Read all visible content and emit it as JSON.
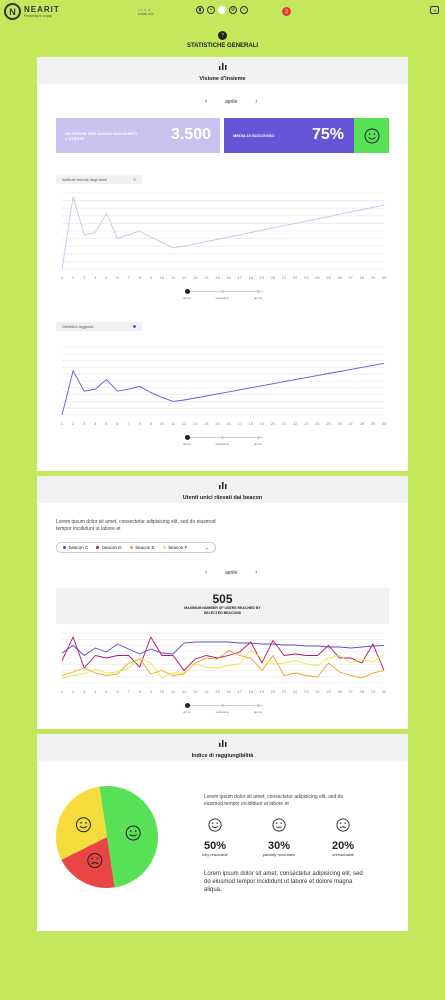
{
  "header": {
    "logo_mark": "N",
    "brand_name": "NEARIT",
    "brand_tagline": "Proximity is a way",
    "mini_line1": "v 1 . 0 . 0",
    "mini_line2": "NOME APP",
    "notifications_count": "3",
    "icons": [
      "chart-icon",
      "plus-icon",
      "share-icon",
      "settings-icon",
      "info-icon"
    ]
  },
  "page": {
    "icon_glyph": "?",
    "title": "STATISTICHE GENERALI"
  },
  "overview": {
    "title": "Visione d'insieme",
    "month": "aprile",
    "kpi_notifications_label": "NOTIFICHE CHE HANNO RAGGIUNTO L'UTENTE",
    "kpi_notifications_value": "3.500",
    "kpi_success_label": "MEDIA DI SUCCESSO",
    "kpi_success_value": "75%",
    "colors": {
      "kpi1": "#c8c3ee",
      "kpi2": "#6655d6",
      "good": "#58e056"
    },
    "range_labels": [
      "ultimo",
      "settimana",
      "giorno"
    ]
  },
  "chart_data": [
    {
      "type": "line",
      "legend": "Notifiche ricevute dagli utenti",
      "x": [
        "1",
        "2",
        "3",
        "4",
        "5",
        "6",
        "7",
        "8",
        "9",
        "10",
        "11",
        "12",
        "13",
        "14",
        "15",
        "16",
        "17",
        "18",
        "19",
        "20",
        "21",
        "22",
        "23",
        "24",
        "25",
        "26",
        "27",
        "28",
        "29",
        "30"
      ],
      "values": [
        0,
        95,
        45,
        48,
        73,
        40,
        45,
        50,
        42,
        35,
        28,
        30,
        33,
        36,
        39,
        42,
        45,
        48,
        51,
        54,
        57,
        60,
        63,
        66,
        69,
        72,
        75,
        78,
        81,
        84
      ],
      "color": "#c8c3ee",
      "ylim": [
        0,
        100
      ]
    },
    {
      "type": "line",
      "legend": "Obbiettivo raggiunto",
      "x": [
        "1",
        "2",
        "3",
        "4",
        "5",
        "6",
        "7",
        "8",
        "9",
        "10",
        "11",
        "12",
        "13",
        "14",
        "15",
        "16",
        "17",
        "18",
        "19",
        "20",
        "21",
        "22",
        "23",
        "24",
        "25",
        "26",
        "27",
        "28",
        "29",
        "30"
      ],
      "values": [
        0,
        65,
        35,
        38,
        52,
        35,
        38,
        42,
        33,
        26,
        20,
        22,
        25,
        28,
        31,
        34,
        37,
        40,
        43,
        46,
        49,
        52,
        55,
        58,
        61,
        64,
        67,
        70,
        73,
        76
      ],
      "color": "#6655d6",
      "ylim": [
        0,
        100
      ]
    },
    {
      "type": "line",
      "x": [
        "1",
        "2",
        "3",
        "4",
        "5",
        "6",
        "7",
        "8",
        "9",
        "10",
        "11",
        "12",
        "13",
        "14",
        "15",
        "16",
        "17",
        "18",
        "19",
        "20",
        "21",
        "22",
        "23",
        "24",
        "25",
        "26",
        "27",
        "28",
        "29",
        "30"
      ],
      "series": [
        {
          "name": "beacon C",
          "color": "#5b4fc9",
          "values": [
            60,
            75,
            55,
            70,
            62,
            78,
            68,
            58,
            68,
            60,
            58,
            80,
            82,
            82,
            82,
            82,
            80,
            80,
            78,
            78,
            76,
            76,
            74,
            74,
            72,
            72,
            70,
            72,
            74,
            75
          ]
        },
        {
          "name": "beacon D",
          "color": "#b4146e",
          "values": [
            45,
            92,
            30,
            55,
            50,
            55,
            55,
            32,
            92,
            55,
            55,
            25,
            48,
            55,
            50,
            55,
            62,
            82,
            40,
            85,
            55,
            58,
            55,
            55,
            75,
            50,
            50,
            40,
            78,
            25
          ]
        },
        {
          "name": "beacon E",
          "color": "#f0a020",
          "values": [
            15,
            22,
            30,
            20,
            15,
            18,
            40,
            48,
            18,
            25,
            15,
            18,
            40,
            50,
            48,
            65,
            55,
            50,
            25,
            55,
            15,
            20,
            15,
            12,
            40,
            22,
            15,
            10,
            20,
            25
          ]
        },
        {
          "name": "beacon F",
          "color": "#e8e838",
          "values": [
            10,
            15,
            18,
            28,
            20,
            22,
            30,
            50,
            40,
            10,
            20,
            20,
            38,
            32,
            30,
            35,
            38,
            65,
            50,
            38,
            40,
            45,
            38,
            35,
            50,
            55,
            40,
            48,
            42,
            58
          ]
        }
      ],
      "ylim": [
        0,
        100
      ]
    },
    {
      "type": "pie",
      "categories": [
        "fully reachable",
        "partially reachable",
        "unreachable"
      ],
      "values": [
        50,
        30,
        20
      ],
      "colors": [
        "#58e056",
        "#f5dc3c",
        "#e84545"
      ]
    }
  ],
  "beacons_section": {
    "title": "Utenti unici rilevati dai beacon",
    "intro": "Lorem ipsum dolor sit amet, consectetur adipisicing elit, sed do eiusmod tempor incididunt ut labore et",
    "month": "aprile",
    "beacons": [
      {
        "name": "beacon C",
        "color": "#5b4fc9"
      },
      {
        "name": "beacon D",
        "color": "#b4146e"
      },
      {
        "name": "beacon E",
        "color": "#f0a020"
      },
      {
        "name": "beacon F",
        "color": "#e8e838"
      }
    ],
    "max_value": "505",
    "max_label": "MAXIMUM NUMBER OF USERS REACHED BY SELECTED BEACONS",
    "range_labels": [
      "ultimo",
      "settimana",
      "giorno"
    ]
  },
  "reach_section": {
    "title": "Indice di raggiungibilità",
    "intro": "Lorem ipsum dolor sit amet, consectetur adipisicing elit, sed do eiusmod tempor incididunt ut labore et",
    "items": [
      {
        "pct": "50%",
        "label": "fully reachable",
        "face": "happy"
      },
      {
        "pct": "30%",
        "label": "partially reachable",
        "face": "neutral"
      },
      {
        "pct": "20%",
        "label": "unreachable",
        "face": "sad"
      }
    ],
    "outro": "Lorem ipsum dolor sit amet, consectetur adipisicing elit, sed do eiusmod tempor incididunt ut labore et dolore magna aliqua."
  }
}
